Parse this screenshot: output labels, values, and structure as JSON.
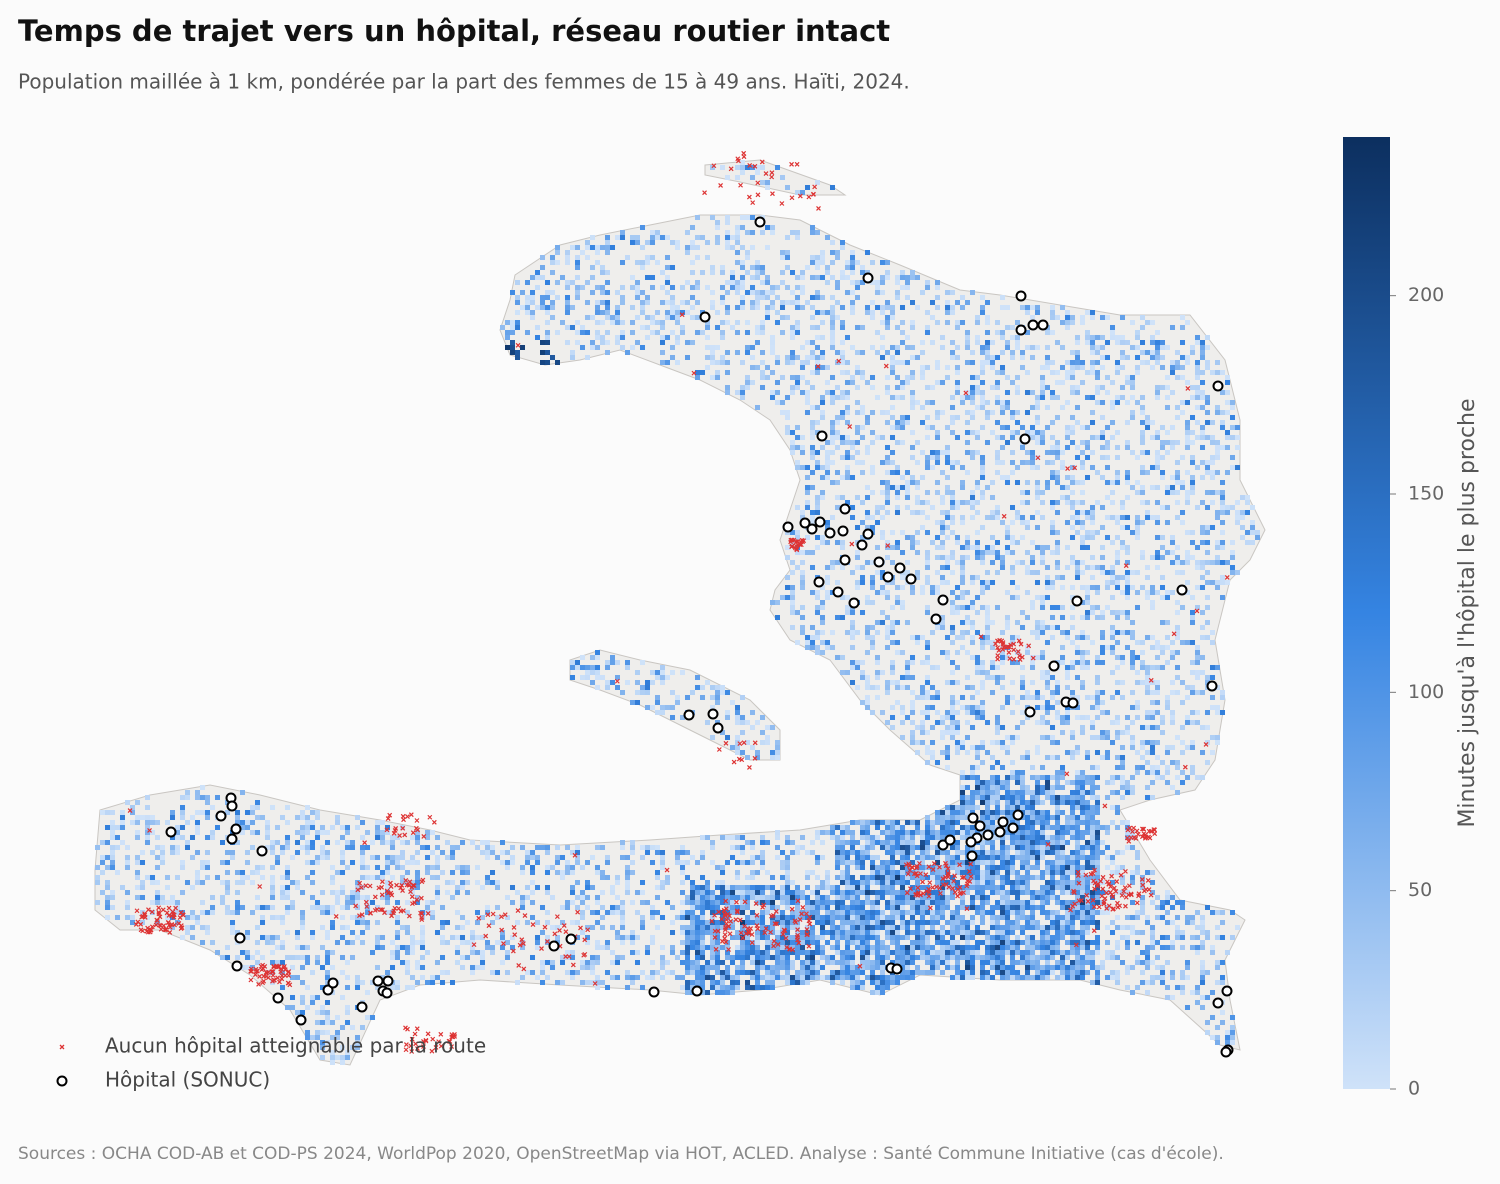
{
  "title": "Temps de trajet vers un hôpital, réseau routier intact",
  "subtitle": "Population maillée à 1 km, pondérée par la part des femmes de 15 à 49 ans. Haïti, 2024.",
  "legend": {
    "items": [
      "Aucun hôpital atteignable par la route",
      "Hôpital (SONUC)"
    ]
  },
  "colorbar": {
    "label": "Minutes jusqu'à l'hôpital le plus proche",
    "lim": [
      0,
      240
    ],
    "ticks": [
      0,
      50,
      100,
      150,
      200
    ],
    "colors": [
      "#cfe2f9",
      "#3584e2",
      "#0c2f5f"
    ]
  },
  "source": "Sources : OCHA COD-AB et COD-PS 2024, WorldPop 2020, OpenStreetMap via HOT, ACLED. Analyse : Santé Commune Initiative (cas d'école)."
}
